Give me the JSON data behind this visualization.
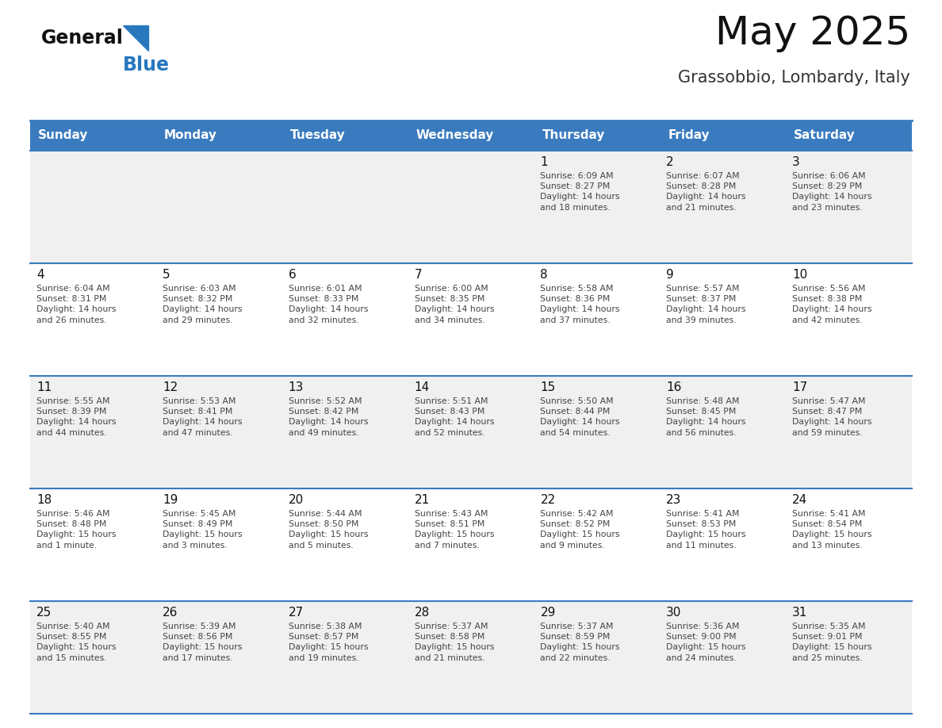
{
  "title": "May 2025",
  "subtitle": "Grassobbio, Lombardy, Italy",
  "header_bg": "#3a7bbf",
  "header_text": "#ffffff",
  "row_bg_odd": "#f0f0f0",
  "row_bg_even": "#ffffff",
  "cell_text_color": "#444444",
  "day_number_color": "#111111",
  "border_color": "#3a7bbf",
  "logo_general_color": "#111111",
  "logo_blue_color": "#2878be",
  "triangle_color": "#2878be",
  "days_of_week": [
    "Sunday",
    "Monday",
    "Tuesday",
    "Wednesday",
    "Thursday",
    "Friday",
    "Saturday"
  ],
  "weeks": [
    [
      {
        "day": "",
        "info": ""
      },
      {
        "day": "",
        "info": ""
      },
      {
        "day": "",
        "info": ""
      },
      {
        "day": "",
        "info": ""
      },
      {
        "day": "1",
        "info": "Sunrise: 6:09 AM\nSunset: 8:27 PM\nDaylight: 14 hours\nand 18 minutes."
      },
      {
        "day": "2",
        "info": "Sunrise: 6:07 AM\nSunset: 8:28 PM\nDaylight: 14 hours\nand 21 minutes."
      },
      {
        "day": "3",
        "info": "Sunrise: 6:06 AM\nSunset: 8:29 PM\nDaylight: 14 hours\nand 23 minutes."
      }
    ],
    [
      {
        "day": "4",
        "info": "Sunrise: 6:04 AM\nSunset: 8:31 PM\nDaylight: 14 hours\nand 26 minutes."
      },
      {
        "day": "5",
        "info": "Sunrise: 6:03 AM\nSunset: 8:32 PM\nDaylight: 14 hours\nand 29 minutes."
      },
      {
        "day": "6",
        "info": "Sunrise: 6:01 AM\nSunset: 8:33 PM\nDaylight: 14 hours\nand 32 minutes."
      },
      {
        "day": "7",
        "info": "Sunrise: 6:00 AM\nSunset: 8:35 PM\nDaylight: 14 hours\nand 34 minutes."
      },
      {
        "day": "8",
        "info": "Sunrise: 5:58 AM\nSunset: 8:36 PM\nDaylight: 14 hours\nand 37 minutes."
      },
      {
        "day": "9",
        "info": "Sunrise: 5:57 AM\nSunset: 8:37 PM\nDaylight: 14 hours\nand 39 minutes."
      },
      {
        "day": "10",
        "info": "Sunrise: 5:56 AM\nSunset: 8:38 PM\nDaylight: 14 hours\nand 42 minutes."
      }
    ],
    [
      {
        "day": "11",
        "info": "Sunrise: 5:55 AM\nSunset: 8:39 PM\nDaylight: 14 hours\nand 44 minutes."
      },
      {
        "day": "12",
        "info": "Sunrise: 5:53 AM\nSunset: 8:41 PM\nDaylight: 14 hours\nand 47 minutes."
      },
      {
        "day": "13",
        "info": "Sunrise: 5:52 AM\nSunset: 8:42 PM\nDaylight: 14 hours\nand 49 minutes."
      },
      {
        "day": "14",
        "info": "Sunrise: 5:51 AM\nSunset: 8:43 PM\nDaylight: 14 hours\nand 52 minutes."
      },
      {
        "day": "15",
        "info": "Sunrise: 5:50 AM\nSunset: 8:44 PM\nDaylight: 14 hours\nand 54 minutes."
      },
      {
        "day": "16",
        "info": "Sunrise: 5:48 AM\nSunset: 8:45 PM\nDaylight: 14 hours\nand 56 minutes."
      },
      {
        "day": "17",
        "info": "Sunrise: 5:47 AM\nSunset: 8:47 PM\nDaylight: 14 hours\nand 59 minutes."
      }
    ],
    [
      {
        "day": "18",
        "info": "Sunrise: 5:46 AM\nSunset: 8:48 PM\nDaylight: 15 hours\nand 1 minute."
      },
      {
        "day": "19",
        "info": "Sunrise: 5:45 AM\nSunset: 8:49 PM\nDaylight: 15 hours\nand 3 minutes."
      },
      {
        "day": "20",
        "info": "Sunrise: 5:44 AM\nSunset: 8:50 PM\nDaylight: 15 hours\nand 5 minutes."
      },
      {
        "day": "21",
        "info": "Sunrise: 5:43 AM\nSunset: 8:51 PM\nDaylight: 15 hours\nand 7 minutes."
      },
      {
        "day": "22",
        "info": "Sunrise: 5:42 AM\nSunset: 8:52 PM\nDaylight: 15 hours\nand 9 minutes."
      },
      {
        "day": "23",
        "info": "Sunrise: 5:41 AM\nSunset: 8:53 PM\nDaylight: 15 hours\nand 11 minutes."
      },
      {
        "day": "24",
        "info": "Sunrise: 5:41 AM\nSunset: 8:54 PM\nDaylight: 15 hours\nand 13 minutes."
      }
    ],
    [
      {
        "day": "25",
        "info": "Sunrise: 5:40 AM\nSunset: 8:55 PM\nDaylight: 15 hours\nand 15 minutes."
      },
      {
        "day": "26",
        "info": "Sunrise: 5:39 AM\nSunset: 8:56 PM\nDaylight: 15 hours\nand 17 minutes."
      },
      {
        "day": "27",
        "info": "Sunrise: 5:38 AM\nSunset: 8:57 PM\nDaylight: 15 hours\nand 19 minutes."
      },
      {
        "day": "28",
        "info": "Sunrise: 5:37 AM\nSunset: 8:58 PM\nDaylight: 15 hours\nand 21 minutes."
      },
      {
        "day": "29",
        "info": "Sunrise: 5:37 AM\nSunset: 8:59 PM\nDaylight: 15 hours\nand 22 minutes."
      },
      {
        "day": "30",
        "info": "Sunrise: 5:36 AM\nSunset: 9:00 PM\nDaylight: 15 hours\nand 24 minutes."
      },
      {
        "day": "31",
        "info": "Sunrise: 5:35 AM\nSunset: 9:01 PM\nDaylight: 15 hours\nand 25 minutes."
      }
    ]
  ]
}
